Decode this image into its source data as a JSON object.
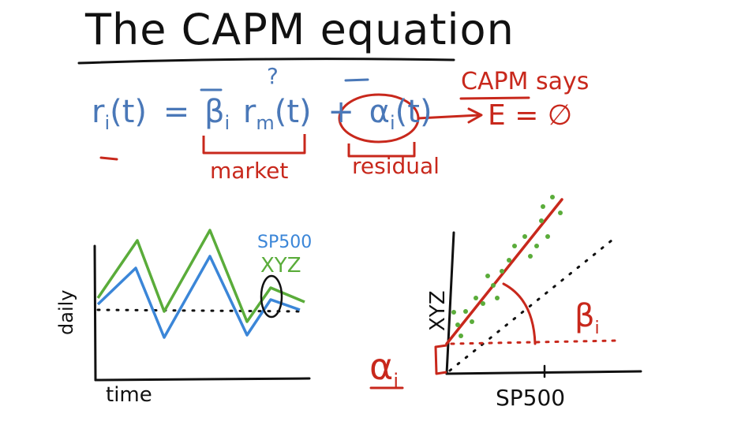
{
  "title": "The CAPM equation",
  "equation": {
    "lhs": "r",
    "lhs_sub": "i",
    "lhs_arg": "(t)",
    "equals": "=",
    "beta": "β",
    "beta_sub": "i",
    "rm": "r",
    "rm_sub": "m",
    "rm_arg": "(t)",
    "question_mark": "?",
    "plus": "+",
    "alpha": "α",
    "alpha_sub": "i",
    "alpha_arg": "(t)"
  },
  "labels": {
    "market": "market",
    "residual": "residual",
    "capm_says": "CAPM says",
    "expectation": "E = ∅"
  },
  "left_chart": {
    "ylabel": "daily",
    "xlabel": "time",
    "legend_sp500": "SP500",
    "legend_xyz": "XYZ"
  },
  "right_chart": {
    "ylabel": "XYZ",
    "xlabel": "SP500",
    "beta_label": "β",
    "beta_sub": "i",
    "alpha_label": "α",
    "alpha_sub": "i"
  },
  "colors": {
    "ink": "#111111",
    "blue": "#4a78b8",
    "red": "#c8281c",
    "green": "#5aac3a"
  }
}
